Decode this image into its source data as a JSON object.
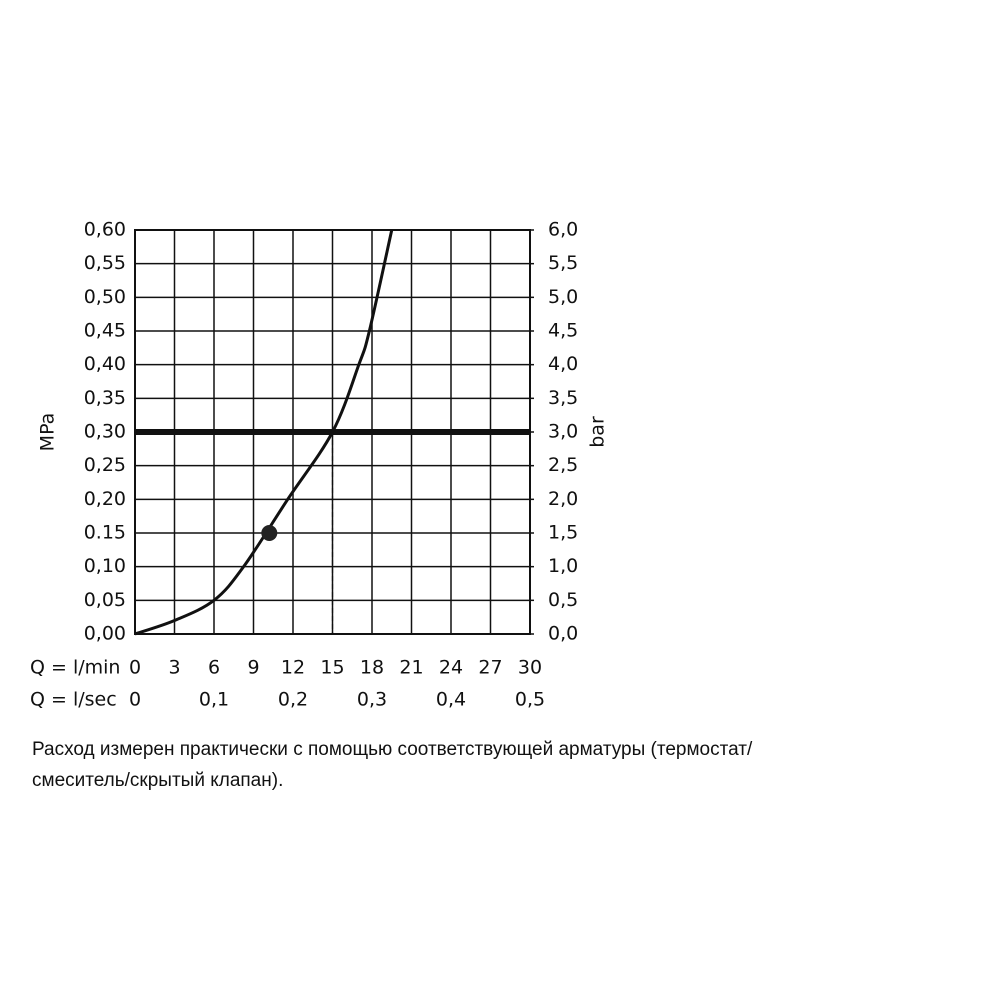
{
  "chart_data": {
    "type": "line",
    "x_label": "Q = l/min",
    "x2_label": "Q = l/sec",
    "y_label": "MPa",
    "y2_label": "bar",
    "xlim": [
      0,
      30
    ],
    "xticks": [
      0,
      3,
      6,
      9,
      12,
      15,
      18,
      21,
      24,
      27,
      30
    ],
    "x2lim": [
      0,
      0.5
    ],
    "x2ticks": [
      0,
      {
        "value": 0.1,
        "label": "0,1"
      },
      {
        "value": 0.2,
        "label": "0,2"
      },
      {
        "value": 0.3,
        "label": "0,3"
      },
      {
        "value": 0.4,
        "label": "0,4"
      },
      {
        "value": 0.5,
        "label": "0,5"
      }
    ],
    "ylim": [
      0,
      0.6
    ],
    "yticks": [
      {
        "value": 0,
        "label": "0,00"
      },
      {
        "value": 0.05,
        "label": "0,05"
      },
      {
        "value": 0.1,
        "label": "0,10"
      },
      {
        "value": 0.15,
        "label": "0.15"
      },
      {
        "value": 0.2,
        "label": "0,20"
      },
      {
        "value": 0.25,
        "label": "0,25"
      },
      {
        "value": 0.3,
        "label": "0,30"
      },
      {
        "value": 0.35,
        "label": "0,35"
      },
      {
        "value": 0.4,
        "label": "0,40"
      },
      {
        "value": 0.45,
        "label": "0,45"
      },
      {
        "value": 0.5,
        "label": "0,50"
      },
      {
        "value": 0.55,
        "label": "0,55"
      },
      {
        "value": 0.6,
        "label": "0,60"
      }
    ],
    "y2lim": [
      0,
      6
    ],
    "y2ticks": [
      {
        "value": 0,
        "label": "0,0"
      },
      {
        "value": 0.5,
        "label": "0,5"
      },
      {
        "value": 1,
        "label": "1,0"
      },
      {
        "value": 1.5,
        "label": "1,5"
      },
      {
        "value": 2,
        "label": "2,0"
      },
      {
        "value": 2.5,
        "label": "2,5"
      },
      {
        "value": 3,
        "label": "3,0"
      },
      {
        "value": 3.5,
        "label": "3,5"
      },
      {
        "value": 4,
        "label": "4,0"
      },
      {
        "value": 4.5,
        "label": "4,5"
      },
      {
        "value": 5,
        "label": "5,0"
      },
      {
        "value": 5.5,
        "label": "5,5"
      },
      {
        "value": 6,
        "label": "6,0"
      }
    ],
    "grid": true,
    "color": "#111111",
    "x": [
      0,
      3,
      6,
      8.25,
      11.6,
      15,
      17,
      17.8,
      19.5
    ],
    "values": [
      0,
      0.02,
      0.05,
      0.1,
      0.2,
      0.3,
      0.4,
      0.45,
      0.6
    ],
    "marker": {
      "x": 10.2,
      "y": 0.15
    },
    "reference": {
      "x": 15,
      "y": 0.3
    },
    "caption_lines": [
      "Расход измерен практически с помощью соответствующей арматуры (термостат/",
      "смеситель/скрытый клапан)."
    ]
  }
}
